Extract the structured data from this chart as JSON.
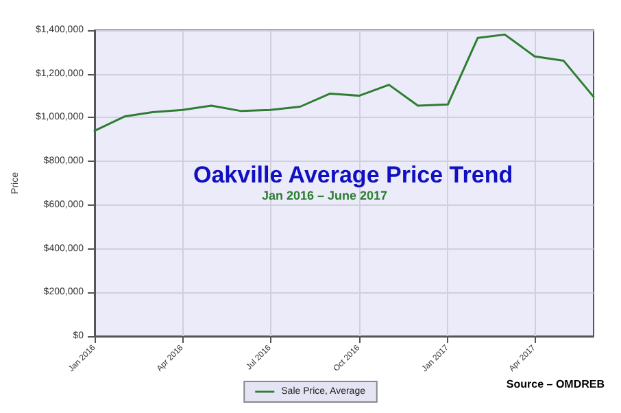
{
  "chart_data": {
    "type": "line",
    "title": "Oakville Average Price Trend",
    "subtitle": "Jan 2016 – June 2017",
    "ylabel": "Price",
    "annotations": [
      "Source – OMDREB"
    ],
    "x": [
      "2016-01",
      "2016-02",
      "2016-03",
      "2016-04",
      "2016-05",
      "2016-06",
      "2016-07",
      "2016-08",
      "2016-09",
      "2016-10",
      "2016-11",
      "2016-12",
      "2017-01",
      "2017-02",
      "2017-03",
      "2017-04",
      "2017-05",
      "2017-06"
    ],
    "series": [
      {
        "name": "Sale Price, Average",
        "color": "#2e7d32",
        "values": [
          940000,
          1005000,
          1025000,
          1035000,
          1055000,
          1030000,
          1035000,
          1050000,
          1110000,
          1100000,
          1150000,
          1055000,
          1060000,
          1365000,
          1380000,
          1280000,
          1260000,
          1095000
        ]
      }
    ],
    "xlim": [
      "2016-01",
      "2017-06"
    ],
    "xticks": [
      {
        "value": "2016-01",
        "label": "Jan 2016"
      },
      {
        "value": "2016-04",
        "label": "Apr 2016"
      },
      {
        "value": "2016-07",
        "label": "Jul 2016"
      },
      {
        "value": "2016-10",
        "label": "Oct 2016"
      },
      {
        "value": "2017-01",
        "label": "Jan 2017"
      },
      {
        "value": "2017-04",
        "label": "Apr 2017"
      }
    ],
    "ylim": [
      0,
      1400000
    ],
    "yticks": [
      {
        "value": 0,
        "label": "$0"
      },
      {
        "value": 200000,
        "label": "$200,000"
      },
      {
        "value": 400000,
        "label": "$400,000"
      },
      {
        "value": 600000,
        "label": "$600,000"
      },
      {
        "value": 800000,
        "label": "$800,000"
      },
      {
        "value": 1000000,
        "label": "$1,000,000"
      },
      {
        "value": 1200000,
        "label": "$1,200,000"
      },
      {
        "value": 1400000,
        "label": "$1,400,000"
      }
    ],
    "grid": true,
    "legend": "bottom",
    "marker": "none",
    "line_style": "solid"
  }
}
